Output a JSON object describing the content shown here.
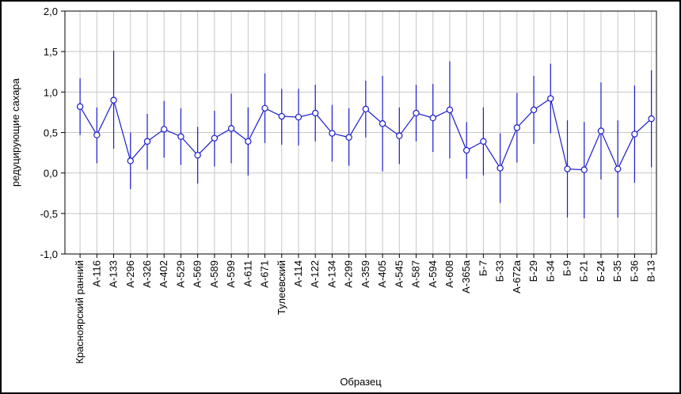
{
  "chart_data": {
    "type": "line",
    "xlabel": "Образец",
    "ylabel": "редуцирующие сахара",
    "ylim": [
      -1.0,
      2.0
    ],
    "yticks": [
      "-1,0",
      "-0,5",
      "0,0",
      "0,5",
      "1,0",
      "1,5",
      "2,0"
    ],
    "ytick_values": [
      -1.0,
      -0.5,
      0.0,
      0.5,
      1.0,
      1.5,
      2.0
    ],
    "grid": true,
    "series_color": "#1c1ccc",
    "categories": [
      "Красноярский ранний",
      "А-116",
      "А-133",
      "А-296",
      "А-326",
      "А-402",
      "А-529",
      "А-569",
      "А-589",
      "А-599",
      "А-611",
      "А-671",
      "Тулеевский",
      "А-114",
      "А-122",
      "А-134",
      "А-299",
      "А-359",
      "А-405",
      "А-545",
      "А-587",
      "А-594",
      "А-608",
      "А-365а",
      "Б-7",
      "Б-33",
      "А-672а",
      "Б-29",
      "Б-34",
      "Б-9",
      "Б-21",
      "Б-24",
      "Б-35",
      "Б-36",
      "В-13"
    ],
    "values": [
      0.82,
      0.47,
      0.9,
      0.15,
      0.39,
      0.54,
      0.45,
      0.22,
      0.43,
      0.55,
      0.39,
      0.8,
      0.7,
      0.69,
      0.74,
      0.49,
      0.44,
      0.79,
      0.61,
      0.46,
      0.74,
      0.68,
      0.78,
      0.28,
      0.39,
      0.06,
      0.56,
      0.78,
      0.92,
      0.05,
      0.04,
      0.52,
      0.05,
      0.48,
      0.67
    ],
    "upper": [
      1.17,
      0.81,
      1.51,
      0.5,
      0.73,
      0.89,
      0.8,
      0.57,
      0.77,
      0.98,
      0.81,
      1.23,
      1.04,
      1.04,
      1.09,
      0.84,
      0.8,
      1.14,
      1.2,
      0.81,
      1.09,
      1.1,
      1.38,
      0.63,
      0.81,
      0.49,
      0.99,
      1.2,
      1.35,
      0.65,
      0.63,
      1.12,
      0.65,
      1.08,
      1.27
    ],
    "lower": [
      0.47,
      0.12,
      0.3,
      -0.2,
      0.04,
      0.19,
      0.1,
      -0.13,
      0.08,
      0.12,
      -0.03,
      0.37,
      0.35,
      0.34,
      0.39,
      0.14,
      0.09,
      0.44,
      0.02,
      0.11,
      0.39,
      0.26,
      0.18,
      -0.07,
      -0.03,
      -0.37,
      0.13,
      0.36,
      0.49,
      -0.55,
      -0.56,
      -0.08,
      -0.55,
      -0.12,
      0.07
    ]
  }
}
